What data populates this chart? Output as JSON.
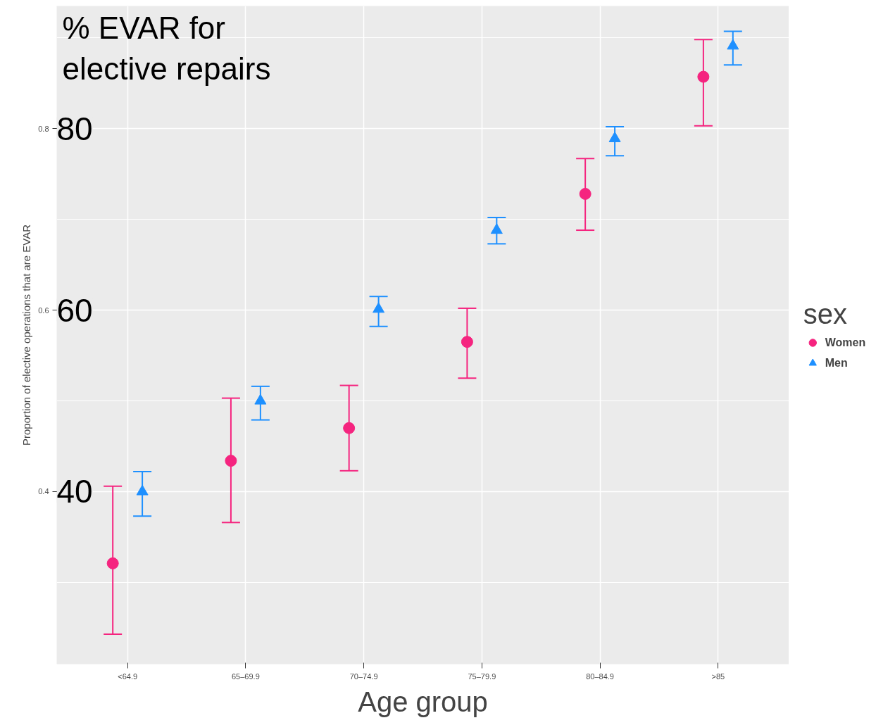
{
  "chart_data": {
    "type": "scatter",
    "title": "% EVAR for elective repairs",
    "xlabel": "Age group",
    "ylabel": "Proportion of elective operations that are EVAR",
    "legend_title": "sex",
    "categories": [
      "<64.9",
      "65–69.9",
      "70–74.9",
      "75–79.9",
      "80–84.9",
      ">85"
    ],
    "series": [
      {
        "name": "Women",
        "color": "#f5247f",
        "marker": "circle",
        "values": [
          0.321,
          0.434,
          0.47,
          0.565,
          0.728,
          0.857
        ],
        "errors": [
          [
            0.243,
            0.406
          ],
          [
            0.366,
            0.503
          ],
          [
            0.423,
            0.517
          ],
          [
            0.525,
            0.602
          ],
          [
            0.688,
            0.767
          ],
          [
            0.803,
            0.898
          ]
        ]
      },
      {
        "name": "Men",
        "color": "#1e90ff",
        "marker": "triangle",
        "values": [
          0.4,
          0.5,
          0.601,
          0.688,
          0.789,
          0.891
        ],
        "errors": [
          [
            0.373,
            0.422
          ],
          [
            0.479,
            0.516
          ],
          [
            0.582,
            0.615
          ],
          [
            0.673,
            0.702
          ],
          [
            0.77,
            0.802
          ],
          [
            0.87,
            0.907
          ]
        ]
      }
    ],
    "ylim": [
      0.21,
      0.935
    ],
    "yticks": [
      {
        "value": 0.4,
        "label": "0.4"
      },
      {
        "value": 0.6,
        "label": "0.6"
      },
      {
        "value": 0.8,
        "label": "0.8"
      }
    ],
    "annotations": [
      "40",
      "60",
      "80"
    ],
    "grid": true,
    "legend": "right"
  }
}
